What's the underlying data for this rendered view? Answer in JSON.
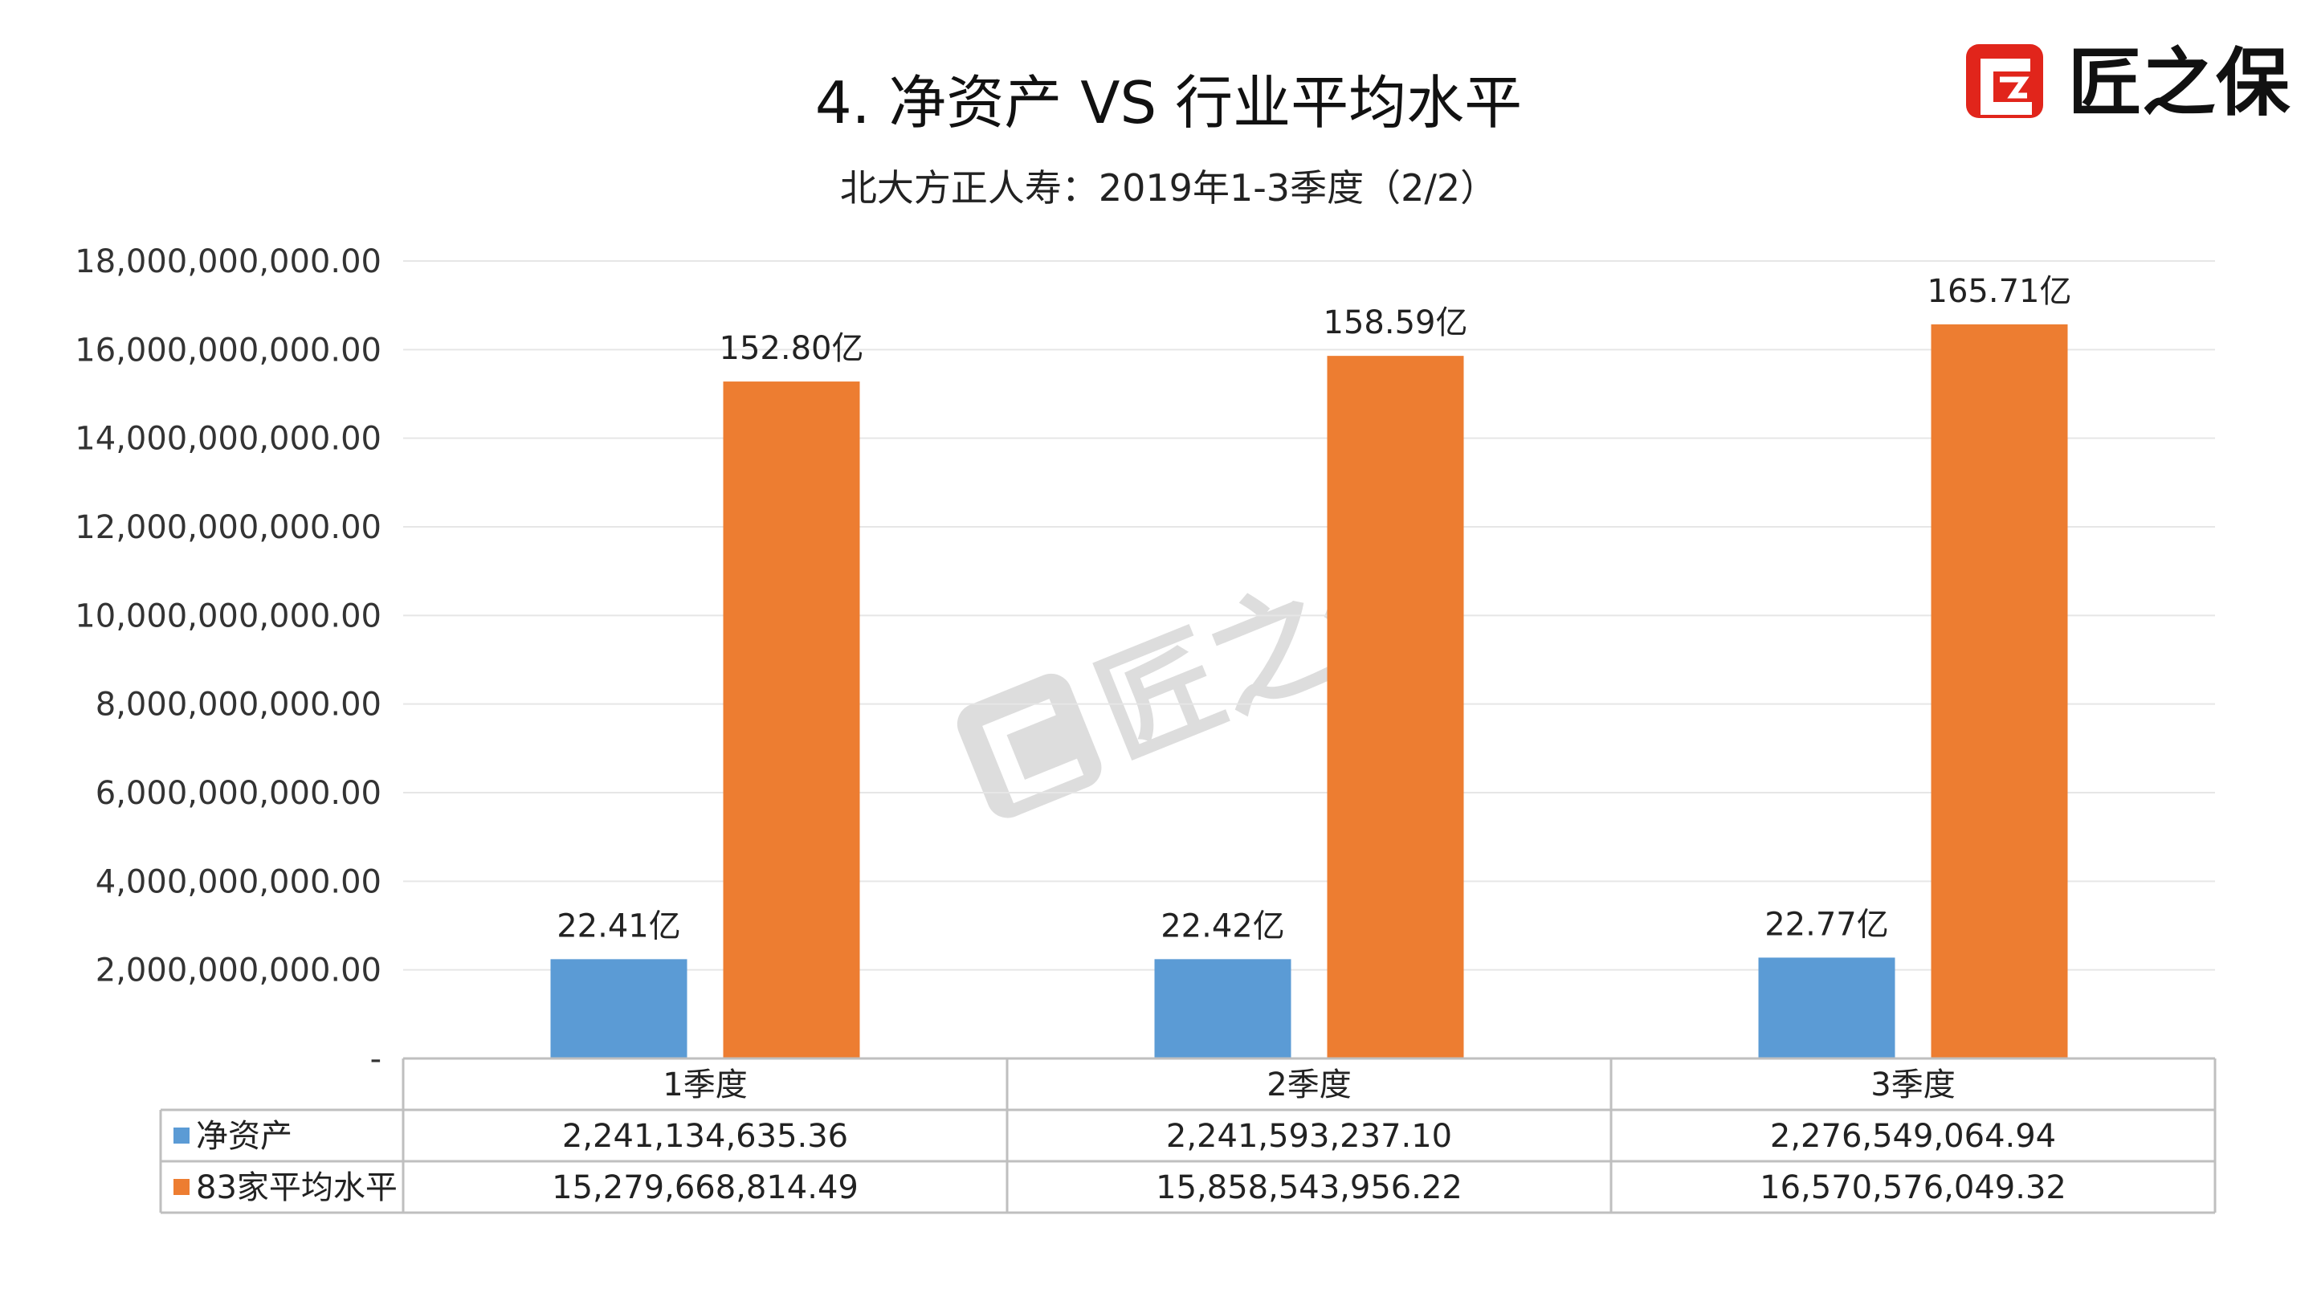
{
  "title": "4.  净资产  VS  行业平均水平",
  "subtitle": "北大方正人寿：2019年1-3季度（2/2）",
  "brand": {
    "name": "匠之保",
    "logo_icon": "jiang-logo-icon"
  },
  "watermark": {
    "text": "匠之保",
    "logo_icon": "jiang-logo-icon"
  },
  "colors": {
    "series1": "#5b9bd5",
    "series2": "#ed7d31",
    "brand_red": "#e1251b",
    "grid": "#e6e6e6"
  },
  "chart_data": {
    "type": "bar",
    "categories": [
      "1季度",
      "2季度",
      "3季度"
    ],
    "series": [
      {
        "name": "净资产",
        "values": [
          2241134635.36,
          2241593237.1,
          2276549064.94
        ],
        "data_labels": [
          "22.41亿",
          "22.42亿",
          "22.77亿"
        ],
        "table_values": [
          "2,241,134,635.36",
          "2,241,593,237.10",
          "2,276,549,064.94"
        ]
      },
      {
        "name": "83家平均水平",
        "values": [
          15279668814.49,
          15858543956.22,
          16570576049.32
        ],
        "data_labels": [
          "152.80亿",
          "158.59亿",
          "165.71亿"
        ],
        "table_values": [
          "15,279,668,814.49",
          "15,858,543,956.22",
          "16,570,576,049.32"
        ]
      }
    ],
    "ylim": [
      0,
      18000000000
    ],
    "yticks": [
      "-",
      "2,000,000,000.00",
      "4,000,000,000.00",
      "6,000,000,000.00",
      "8,000,000,000.00",
      "10,000,000,000.00",
      "12,000,000,000.00",
      "14,000,000,000.00",
      "16,000,000,000.00",
      "18,000,000,000.00"
    ],
    "grid": true,
    "legend": "data table"
  }
}
